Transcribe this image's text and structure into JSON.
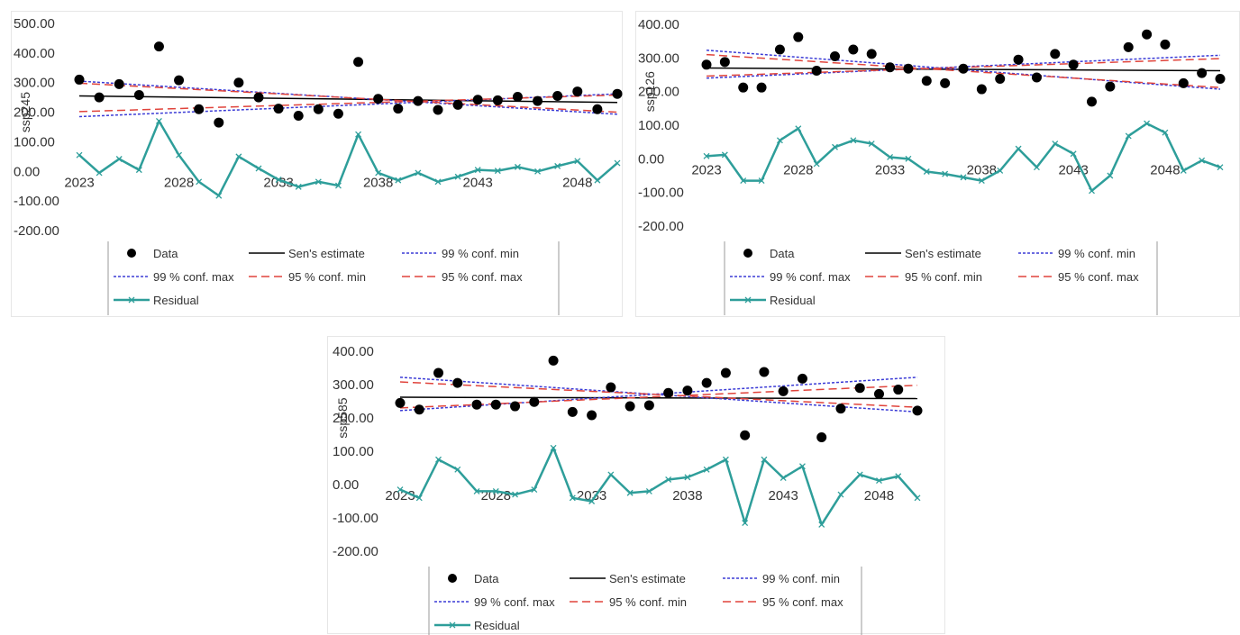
{
  "chart_data": [
    {
      "type": "line",
      "ylabel": "ssp245",
      "ylim": [
        -200,
        500
      ],
      "yticks": [
        "500.00",
        "400.00",
        "300.00",
        "200.00",
        "100.00",
        "0.00",
        "-100.00",
        "-200.00"
      ],
      "xticks": [
        "2023",
        "2028",
        "2033",
        "2038",
        "2043",
        "2048"
      ],
      "x_start": 2023,
      "series": [
        {
          "name": "Data",
          "style": "markers",
          "values": [
            310,
            250,
            295,
            258,
            422,
            308,
            210,
            165,
            300,
            250,
            212,
            188,
            210,
            195,
            370,
            245,
            212,
            238,
            208,
            225,
            242,
            240,
            252,
            238,
            255,
            270,
            210,
            262
          ]
        },
        {
          "name": "Sen's estimate",
          "style": "line",
          "start": 255,
          "end": 233
        },
        {
          "name": "99 % conf. min",
          "style": "dotted",
          "start": 305,
          "end": 193
        },
        {
          "name": "99 % conf. max",
          "style": "dotted",
          "start": 185,
          "end": 262
        },
        {
          "name": "95 % conf. min",
          "style": "dashed",
          "start": 298,
          "end": 200
        },
        {
          "name": "95 % conf. max",
          "style": "dashed",
          "start": 202,
          "end": 258
        },
        {
          "name": "Residual",
          "style": "line-x",
          "values": [
            55,
            -5,
            42,
            5,
            170,
            55,
            -35,
            -82,
            50,
            10,
            -28,
            -52,
            -35,
            -48,
            125,
            -5,
            -30,
            -5,
            -35,
            -18,
            5,
            2,
            15,
            0,
            18,
            35,
            -30,
            28
          ]
        }
      ],
      "legend": {
        "rows": [
          [
            "Data",
            "Sen's estimate",
            "99 % conf. min"
          ],
          [
            "99 % conf. max",
            "95 % conf. min",
            "95 % conf. max"
          ],
          [
            "Residual"
          ]
        ]
      }
    },
    {
      "type": "line",
      "ylabel": "ssp126",
      "ylim": [
        -200,
        400
      ],
      "yticks": [
        "400.00",
        "300.00",
        "200.00",
        "100.00",
        "0.00",
        "-100.00",
        "-200.00"
      ],
      "xticks": [
        "2023",
        "2028",
        "2033",
        "2038",
        "2043",
        "2048"
      ],
      "x_start": 2023,
      "series": [
        {
          "name": "Data",
          "style": "markers",
          "values": [
            280,
            288,
            212,
            212,
            325,
            362,
            262,
            305,
            325,
            312,
            272,
            268,
            232,
            225,
            268,
            207,
            238,
            295,
            242,
            312,
            280,
            170,
            215,
            332,
            370,
            340,
            225,
            255,
            238
          ]
        },
        {
          "name": "Sen's estimate",
          "style": "line",
          "start": 270,
          "end": 262
        },
        {
          "name": "99 % conf. min",
          "style": "dotted",
          "start": 323,
          "end": 207
        },
        {
          "name": "99 % conf. max",
          "style": "dotted",
          "start": 240,
          "end": 308
        },
        {
          "name": "95 % conf. min",
          "style": "dashed",
          "start": 310,
          "end": 212
        },
        {
          "name": "95 % conf. max",
          "style": "dashed",
          "start": 246,
          "end": 298
        },
        {
          "name": "Residual",
          "style": "line-x",
          "values": [
            8,
            12,
            -65,
            -65,
            55,
            90,
            -15,
            35,
            55,
            45,
            5,
            0,
            -38,
            -45,
            -55,
            -65,
            -35,
            30,
            -25,
            45,
            15,
            -95,
            -50,
            68,
            105,
            78,
            -35,
            -5,
            -25
          ]
        }
      ],
      "legend": {
        "rows": [
          [
            "Data",
            "Sen's estimate",
            "99 % conf. min"
          ],
          [
            "99 % conf. max",
            "95 % conf. min",
            "95 % conf. max"
          ],
          [
            "Residual"
          ]
        ]
      }
    },
    {
      "type": "line",
      "ylabel": "ssp585",
      "ylim": [
        -200,
        400
      ],
      "yticks": [
        "400.00",
        "300.00",
        "200.00",
        "100.00",
        "0.00",
        "-100.00",
        "-200.00"
      ],
      "xticks": [
        "2023",
        "2028",
        "2033",
        "2038",
        "2043",
        "2048"
      ],
      "x_start": 2023,
      "series": [
        {
          "name": "Data",
          "style": "markers",
          "values": [
            245,
            225,
            335,
            305,
            240,
            240,
            235,
            248,
            372,
            218,
            208,
            292,
            235,
            238,
            275,
            282,
            305,
            335,
            148,
            338,
            280,
            318,
            142,
            228,
            290,
            272,
            285,
            222
          ]
        },
        {
          "name": "Sen's estimate",
          "style": "line",
          "start": 262,
          "end": 258
        },
        {
          "name": "99 % conf. min",
          "style": "dotted",
          "start": 322,
          "end": 218
        },
        {
          "name": "99 % conf. max",
          "style": "dotted",
          "start": 222,
          "end": 322
        },
        {
          "name": "95 % conf. min",
          "style": "dashed",
          "start": 308,
          "end": 232
        },
        {
          "name": "95 % conf. max",
          "style": "dashed",
          "start": 230,
          "end": 298
        },
        {
          "name": "Residual",
          "style": "line-x",
          "values": [
            -15,
            -40,
            75,
            45,
            -20,
            -20,
            -30,
            -15,
            110,
            -40,
            -50,
            30,
            -25,
            -20,
            15,
            22,
            45,
            75,
            -115,
            75,
            20,
            55,
            -120,
            -30,
            30,
            12,
            25,
            -40
          ]
        }
      ],
      "legend": {
        "rows": [
          [
            "Data",
            "Sen's estimate",
            "99 % conf. min"
          ],
          [
            "99 % conf. max",
            "95 % conf. min",
            "95 % conf. max"
          ],
          [
            "Residual"
          ]
        ]
      }
    }
  ],
  "colors": {
    "data": "#000000",
    "sen": "#000000",
    "conf99": "#3b3bd6",
    "conf95": "#e0443c",
    "residual": "#2e9e9a",
    "text": "#333333",
    "legend_border": "#9a9a9a"
  }
}
